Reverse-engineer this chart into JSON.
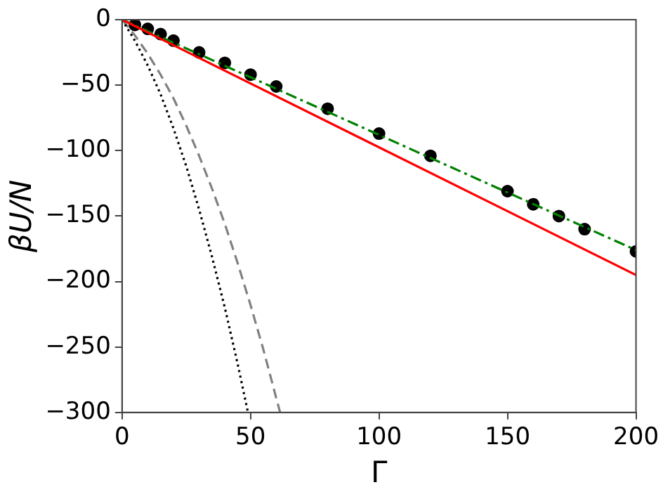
{
  "chart_data": {
    "type": "line",
    "xlabel": "Γ",
    "ylabel": "βU/N",
    "xlim": [
      0,
      200
    ],
    "ylim": [
      -300,
      0
    ],
    "xticks": [
      0,
      50,
      100,
      150,
      200
    ],
    "yticks": [
      {
        "value": -300,
        "label": "−300"
      },
      {
        "value": -250,
        "label": "−250"
      },
      {
        "value": -200,
        "label": "−200"
      },
      {
        "value": -150,
        "label": "−150"
      },
      {
        "value": -100,
        "label": "−100"
      },
      {
        "value": -50,
        "label": "−50"
      },
      0
    ],
    "grid": false,
    "legend": false,
    "series": [
      {
        "color": "#ff0000",
        "line_style": "solid",
        "marker": "none",
        "x": [
          0,
          200
        ],
        "values": [
          0,
          -195
        ]
      },
      {
        "color": "#008000",
        "line_style": "dashdot",
        "marker": "none",
        "x": [
          0,
          200
        ],
        "values": [
          0,
          -176
        ]
      },
      {
        "color": "#000000",
        "line_style": "dotted",
        "marker": "none",
        "x": [
          0,
          5,
          10,
          15,
          20,
          25,
          30,
          35,
          40,
          45,
          49
        ],
        "values": [
          0,
          -16,
          -35,
          -57,
          -83,
          -112,
          -145,
          -181,
          -220,
          -263,
          -300
        ]
      },
      {
        "color": "#808080",
        "line_style": "dashed",
        "marker": "none",
        "x": [
          0,
          5,
          10,
          15,
          20,
          25,
          30,
          35,
          40,
          45,
          50,
          55,
          60,
          61.5
        ],
        "values": [
          0,
          -12,
          -26,
          -42,
          -60,
          -81,
          -104,
          -129,
          -156,
          -186,
          -218,
          -252,
          -289,
          -300
        ]
      },
      {
        "type": "scatter",
        "color": "#000000",
        "marker": "circle",
        "x": [
          5,
          10,
          15,
          20,
          30,
          40,
          50,
          60,
          80,
          100,
          120,
          150,
          160,
          170,
          180,
          200
        ],
        "values": [
          -4,
          -7,
          -11,
          -16,
          -25,
          -33,
          -42,
          -51,
          -68,
          -87,
          -104,
          -131,
          -141,
          -150,
          -160,
          -177
        ]
      }
    ]
  }
}
